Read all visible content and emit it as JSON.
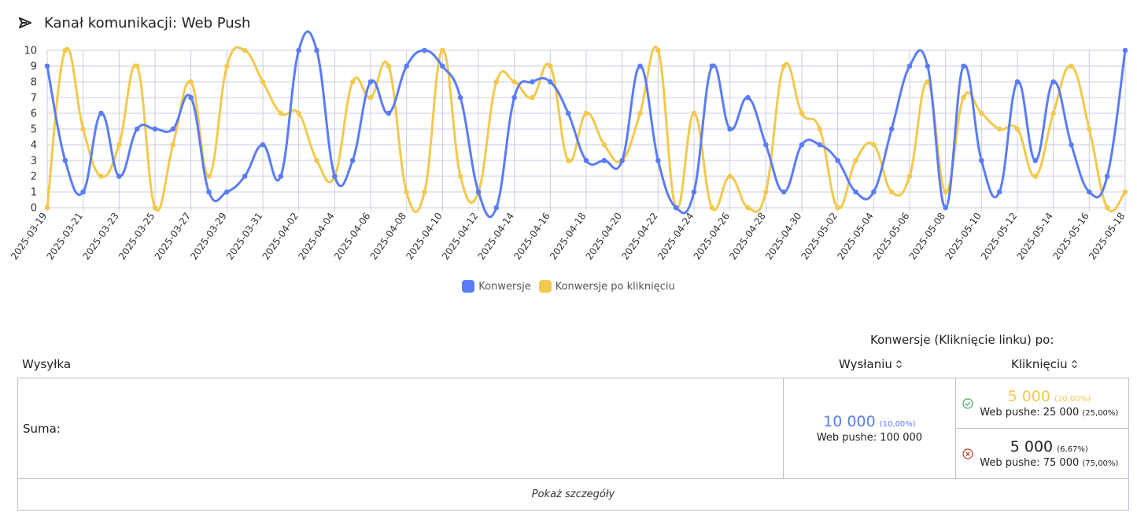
{
  "header": {
    "title": "Kanał komunikacji: Web Push",
    "icon": "send-outline-icon"
  },
  "chart_data": {
    "type": "line",
    "x": [
      "2025-03-19",
      "2025-03-20",
      "2025-03-21",
      "2025-03-22",
      "2025-03-23",
      "2025-03-24",
      "2025-03-25",
      "2025-03-26",
      "2025-03-27",
      "2025-03-28",
      "2025-03-29",
      "2025-03-30",
      "2025-03-31",
      "2025-04-01",
      "2025-04-02",
      "2025-04-03",
      "2025-04-04",
      "2025-04-05",
      "2025-04-06",
      "2025-04-07",
      "2025-04-08",
      "2025-04-09",
      "2025-04-10",
      "2025-04-11",
      "2025-04-12",
      "2025-04-13",
      "2025-04-14",
      "2025-04-15",
      "2025-04-16",
      "2025-04-17",
      "2025-04-18",
      "2025-04-19",
      "2025-04-20",
      "2025-04-21",
      "2025-04-22",
      "2025-04-23",
      "2025-04-24",
      "2025-04-25",
      "2025-04-26",
      "2025-04-27",
      "2025-04-28",
      "2025-04-29",
      "2025-04-30",
      "2025-05-01",
      "2025-05-02",
      "2025-05-03",
      "2025-05-04",
      "2025-05-05",
      "2025-05-06",
      "2025-05-07",
      "2025-05-08",
      "2025-05-09",
      "2025-05-10",
      "2025-05-11",
      "2025-05-12",
      "2025-05-13",
      "2025-05-14",
      "2025-05-15",
      "2025-05-16",
      "2025-05-17",
      "2025-05-18"
    ],
    "tick_labels": [
      "2025-03-19",
      "2025-03-21",
      "2025-03-23",
      "2025-03-25",
      "2025-03-27",
      "2025-03-29",
      "2025-03-31",
      "2025-04-02",
      "2025-04-04",
      "2025-04-06",
      "2025-04-08",
      "2025-04-10",
      "2025-04-12",
      "2025-04-14",
      "2025-04-16",
      "2025-04-18",
      "2025-04-20",
      "2025-04-22",
      "2025-04-24",
      "2025-04-26",
      "2025-04-28",
      "2025-04-30",
      "2025-05-02",
      "2025-05-04",
      "2025-05-06",
      "2025-05-08",
      "2025-05-10",
      "2025-05-12",
      "2025-05-14",
      "2025-05-16",
      "2025-05-18"
    ],
    "series": [
      {
        "name": "Konwersje",
        "color": "#5b7cf7",
        "values": [
          9,
          3,
          1,
          6,
          2,
          5,
          5,
          5,
          7,
          1,
          1,
          2,
          4,
          2,
          10,
          10,
          2,
          3,
          8,
          6,
          9,
          10,
          9,
          7,
          1,
          0,
          7,
          8,
          8,
          6,
          3,
          3,
          3,
          9,
          3,
          0,
          1,
          9,
          5,
          7,
          4,
          1,
          4,
          4,
          3,
          1,
          1,
          5,
          9,
          9,
          0,
          9,
          3,
          1,
          8,
          3,
          8,
          4,
          1,
          2,
          10
        ]
      },
      {
        "name": "Konwersje po kliknięciu",
        "color": "#f2c94c",
        "values": [
          0,
          10,
          5,
          2,
          4,
          9,
          0,
          4,
          8,
          2,
          9,
          10,
          8,
          6,
          6,
          3,
          2,
          8,
          7,
          9,
          1,
          1,
          10,
          2,
          1,
          8,
          8,
          7,
          9,
          3,
          6,
          4,
          3,
          6,
          10,
          0,
          6,
          0,
          2,
          0,
          1,
          9,
          6,
          5,
          0,
          3,
          4,
          1,
          2,
          8,
          1,
          7,
          6,
          5,
          5,
          2,
          6,
          9,
          5,
          0,
          1
        ]
      }
    ],
    "ylim": [
      0,
      10
    ],
    "yticks": [
      0,
      1,
      2,
      3,
      4,
      5,
      6,
      7,
      8,
      9,
      10
    ],
    "grid": true,
    "legend_position": "bottom-center"
  },
  "table": {
    "group_title": "Konwersje (Kliknięcie linku) po:",
    "col_wysylka": "Wysyłka",
    "col_wyslaniu": "Wysłaniu",
    "col_kliknieciu": "Kliknięciu",
    "sort_icon": "⌃⌄",
    "row_label": "Suma:",
    "wyslaniu": {
      "value": "10 000",
      "pct": "(10,00%)",
      "sub": "Web pushe: 100 000",
      "color": "#5b7cf7"
    },
    "klik_ok": {
      "value": "5 000",
      "pct": "(20,00%)",
      "sub_label": "Web pushe: 25 000",
      "sub_pct": "(25,00%)",
      "color": "#f2c94c",
      "icon": "check-circle-icon"
    },
    "klik_no": {
      "value": "5 000",
      "pct": "(6,67%)",
      "sub_label": "Web pushe: 75 000",
      "sub_pct": "(75,00%)",
      "color": "#222222",
      "icon": "x-circle-icon"
    },
    "details_link": "Pokaż szczegóły"
  }
}
